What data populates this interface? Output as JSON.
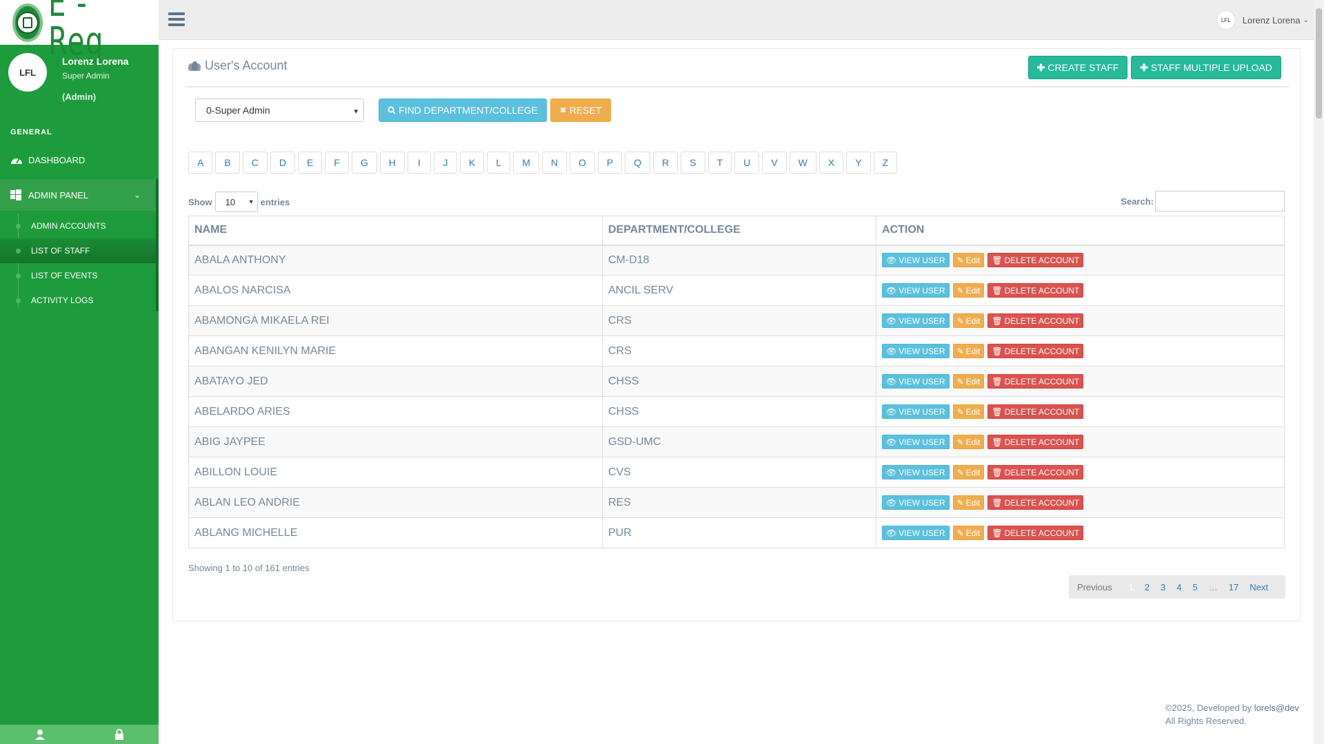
{
  "brand": {
    "logo_text": "E - Reg"
  },
  "profile": {
    "initials": "LFL",
    "name": "Lorenz Lorena",
    "role": "Super Admin",
    "tag": "(Admin)"
  },
  "sidebar": {
    "section": "GENERAL",
    "dashboard": "DASHBOARD",
    "admin_panel": "ADMIN PANEL",
    "sub_items": [
      "ADMIN ACCOUNTS",
      "LIST OF STAFF",
      "LIST OF EVENTS",
      "ACTIVITY LOGS"
    ]
  },
  "topbar": {
    "user_initials": "LFL",
    "user_name": "Lorenz Lorena"
  },
  "panel": {
    "title": "User's Account",
    "create_staff": "CREATE STAFF",
    "multiple_upload": "STAFF MULTIPLE UPLOAD",
    "filter_value": "0-Super Admin",
    "find_label": "FIND DEPARTMENT/COLLEGE",
    "reset_label": "RESET"
  },
  "alphabet": [
    "A",
    "B",
    "C",
    "D",
    "E",
    "F",
    "G",
    "H",
    "I",
    "J",
    "K",
    "L",
    "M",
    "N",
    "O",
    "P",
    "Q",
    "R",
    "S",
    "T",
    "U",
    "V",
    "W",
    "X",
    "Y",
    "Z"
  ],
  "table": {
    "show": "Show",
    "entries_value": "10",
    "entries": "entries",
    "search_label": "Search:",
    "headers": [
      "NAME",
      "DEPARTMENT/COLLEGE",
      "ACTION"
    ],
    "action_labels": {
      "view": "VIEW USER",
      "edit": "Edit",
      "delete": "DELETE ACCOUNT"
    },
    "rows": [
      {
        "name": "ABALA ANTHONY",
        "dept": "CM-D18"
      },
      {
        "name": "ABALOS NARCISA",
        "dept": "ANCIL SERV"
      },
      {
        "name": "ABAMONGA MIKAELA REI",
        "dept": "CRS"
      },
      {
        "name": "ABANGAN KENILYN MARIE",
        "dept": "CRS"
      },
      {
        "name": "ABATAYO JED",
        "dept": "CHSS"
      },
      {
        "name": "ABELARDO ARIES",
        "dept": "CHSS"
      },
      {
        "name": "ABIG JAYPEE",
        "dept": "GSD-UMC"
      },
      {
        "name": "ABILLON LOUIE",
        "dept": "CVS"
      },
      {
        "name": "ABLAN LEO ANDRIE",
        "dept": "RES"
      },
      {
        "name": "ABLANG MICHELLE",
        "dept": "PUR"
      }
    ],
    "showing": "Showing 1 to 10 of 161 entries"
  },
  "pagination": {
    "previous": "Previous",
    "pages": [
      "1",
      "2",
      "3",
      "4",
      "5"
    ],
    "ellipsis": "…",
    "last": "17",
    "next": "Next"
  },
  "footer": {
    "copyright": "©2025, Developed by ",
    "dev": "lorels@dev",
    "rights": "All Rights Reserved."
  }
}
